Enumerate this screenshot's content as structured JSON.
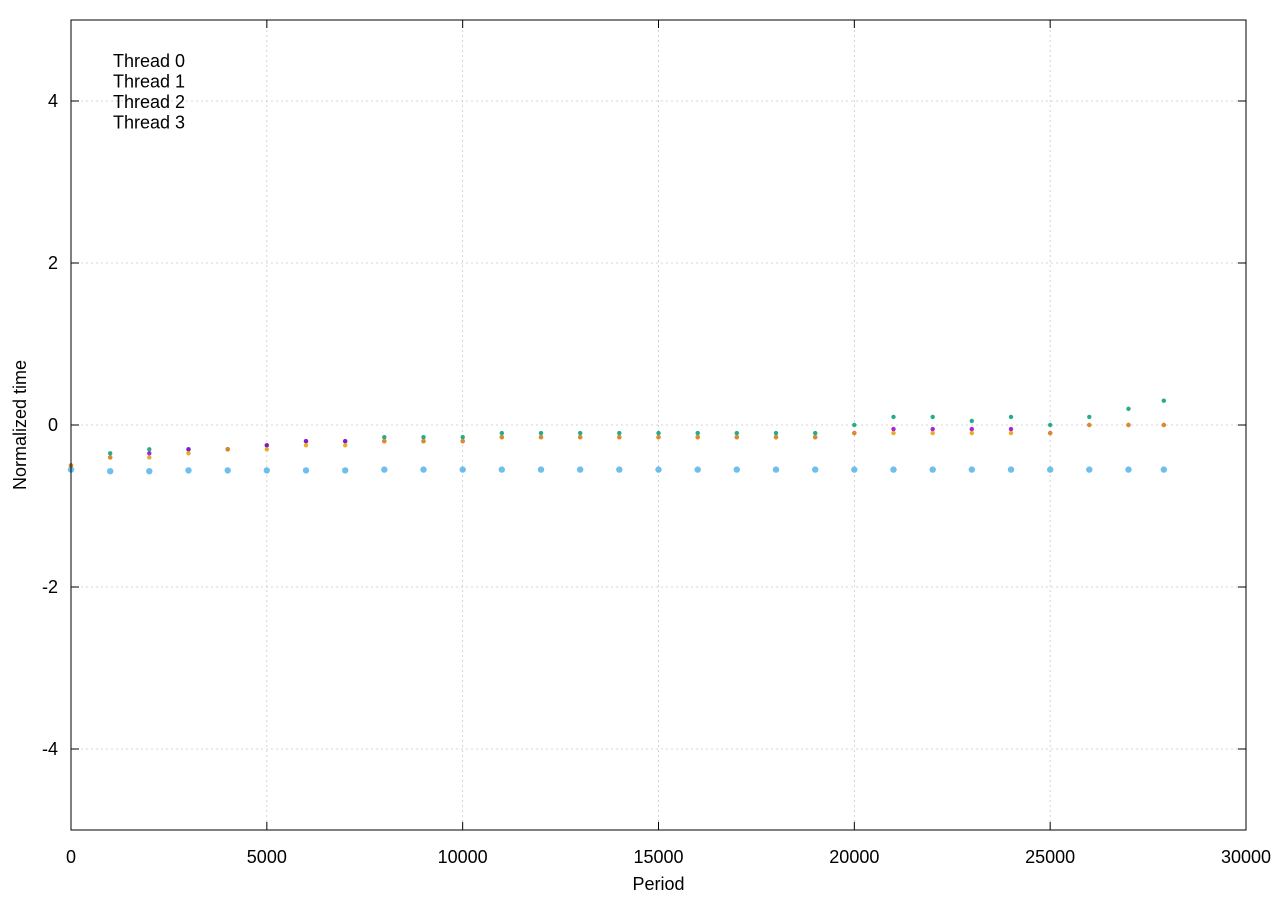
{
  "chart_data": {
    "type": "scatter",
    "title": "",
    "xlabel": "Period",
    "ylabel": "Normalized time",
    "xlim": [
      0,
      30000
    ],
    "ylim": [
      -5,
      5
    ],
    "xticks": [
      0,
      5000,
      10000,
      15000,
      20000,
      25000,
      30000
    ],
    "xtick_labels": [
      "0",
      "5000",
      "10000",
      "15000",
      "20000",
      "25000",
      "30000"
    ],
    "yticks": [
      -4,
      -2,
      0,
      2,
      4
    ],
    "ytick_labels": [
      "-4",
      "-2",
      "0",
      "2",
      "4"
    ],
    "grid": true,
    "legend_position": "top-left",
    "series": [
      {
        "name": "Thread 0",
        "color": "#56b4e9",
        "x": [
          0,
          1000,
          2000,
          3000,
          4000,
          5000,
          6000,
          7000,
          8000,
          9000,
          10000,
          11000,
          12000,
          13000,
          14000,
          15000,
          16000,
          17000,
          18000,
          19000,
          20000,
          21000,
          22000,
          23000,
          24000,
          25000,
          26000,
          27000,
          27900
        ],
        "y": [
          -0.55,
          -0.57,
          -0.57,
          -0.56,
          -0.56,
          -0.56,
          -0.56,
          -0.56,
          -0.55,
          -0.55,
          -0.55,
          -0.55,
          -0.55,
          -0.55,
          -0.55,
          -0.55,
          -0.55,
          -0.55,
          -0.55,
          -0.55,
          -0.55,
          -0.55,
          -0.55,
          -0.55,
          -0.55,
          -0.55,
          -0.55,
          -0.55,
          -0.55
        ]
      },
      {
        "name": "Thread 1",
        "color": "#009e73",
        "x": [
          0,
          1000,
          2000,
          3000,
          4000,
          5000,
          6000,
          7000,
          8000,
          9000,
          10000,
          11000,
          12000,
          13000,
          14000,
          15000,
          16000,
          17000,
          18000,
          19000,
          20000,
          21000,
          22000,
          23000,
          24000,
          25000,
          26000,
          27000,
          27900
        ],
        "y": [
          -0.5,
          -0.35,
          -0.3,
          -0.3,
          -0.3,
          -0.25,
          -0.2,
          -0.2,
          -0.15,
          -0.15,
          -0.15,
          -0.1,
          -0.1,
          -0.1,
          -0.1,
          -0.1,
          -0.1,
          -0.1,
          -0.1,
          -0.1,
          0.0,
          0.1,
          0.1,
          0.05,
          0.1,
          0.0,
          0.1,
          0.2,
          0.3
        ]
      },
      {
        "name": "Thread 2",
        "color": "#9400d3",
        "x": [
          0,
          1000,
          2000,
          3000,
          4000,
          5000,
          6000,
          7000,
          8000,
          9000,
          10000,
          11000,
          12000,
          13000,
          14000,
          15000,
          16000,
          17000,
          18000,
          19000,
          20000,
          21000,
          22000,
          23000,
          24000,
          25000,
          26000,
          27000,
          27900
        ],
        "y": [
          -0.5,
          -0.4,
          -0.35,
          -0.3,
          -0.3,
          -0.25,
          -0.2,
          -0.2,
          -0.2,
          -0.2,
          -0.2,
          -0.15,
          -0.15,
          -0.15,
          -0.15,
          -0.15,
          -0.15,
          -0.15,
          -0.15,
          -0.15,
          -0.1,
          -0.05,
          -0.05,
          -0.05,
          -0.05,
          -0.1,
          0.0,
          0.0,
          0.0
        ]
      },
      {
        "name": "Thread 3",
        "color": "#e69f00",
        "x": [
          0,
          1000,
          2000,
          3000,
          4000,
          5000,
          6000,
          7000,
          8000,
          9000,
          10000,
          11000,
          12000,
          13000,
          14000,
          15000,
          16000,
          17000,
          18000,
          19000,
          20000,
          21000,
          22000,
          23000,
          24000,
          25000,
          26000,
          27000,
          27900
        ],
        "y": [
          -0.5,
          -0.4,
          -0.4,
          -0.35,
          -0.3,
          -0.3,
          -0.25,
          -0.25,
          -0.2,
          -0.2,
          -0.2,
          -0.15,
          -0.15,
          -0.15,
          -0.15,
          -0.15,
          -0.15,
          -0.15,
          -0.15,
          -0.15,
          -0.1,
          -0.1,
          -0.1,
          -0.1,
          -0.1,
          -0.1,
          0.0,
          0.0,
          0.0
        ]
      }
    ]
  }
}
